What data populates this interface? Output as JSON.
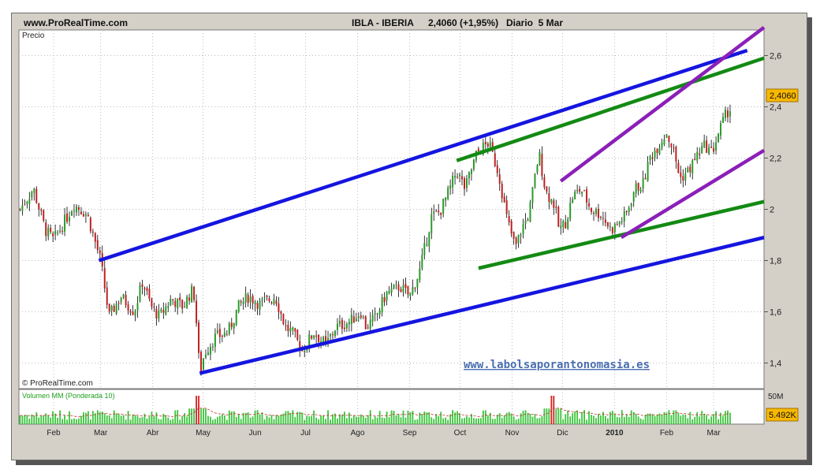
{
  "header": {
    "site": "www.ProRealTime.com",
    "ticker": "IBLA - IBERIA",
    "quote": "2,4060 (+1,95%)",
    "period": "Diario  5 Mar"
  },
  "price_panel": {
    "label": "Precio",
    "copyright": "© ProRealTime.com",
    "watermark": "www.labolsaporantonomasia.es",
    "last_price_badge": "2,4060"
  },
  "volume_panel": {
    "label": "Volumen MM (Ponderada 10)",
    "scale_label": "50M",
    "last_volume_badge": "5.492K"
  },
  "colors": {
    "blue_channel": "#1515e0",
    "green_trend": "#138a13",
    "purple_channel": "#8b1fb8",
    "volume_bar": "#3cc43c",
    "volume_spike": "#d82020",
    "volume_avg": "#c03030"
  },
  "chart_data": {
    "type": "candlestick",
    "title": "IBLA - IBERIA",
    "ylabel": "Precio",
    "ylim": [
      1.3,
      2.7
    ],
    "y_ticks": [
      "2,6",
      "2,4",
      "2,2",
      "2",
      "1,8",
      "1,6",
      "1,4"
    ],
    "y_tick_values": [
      2.6,
      2.4,
      2.2,
      2.0,
      1.8,
      1.6,
      1.4
    ],
    "x_ticks": [
      "Feb",
      "Mar",
      "Abr",
      "May",
      "Jun",
      "Jul",
      "Ago",
      "Sep",
      "Oct",
      "Nov",
      "Dic",
      "2010",
      "Feb",
      "Mar"
    ],
    "x_tick_days": [
      0,
      28,
      59,
      89,
      120,
      150,
      181,
      212,
      242,
      273,
      303,
      334,
      365,
      393
    ],
    "last_price": 2.406,
    "change_pct": 1.95,
    "price_path": [
      [
        -20,
        2.0
      ],
      [
        -12,
        2.08
      ],
      [
        -5,
        1.92
      ],
      [
        0,
        1.88
      ],
      [
        8,
        1.97
      ],
      [
        12,
        2.02
      ],
      [
        20,
        1.98
      ],
      [
        28,
        1.8
      ],
      [
        33,
        1.58
      ],
      [
        40,
        1.66
      ],
      [
        48,
        1.6
      ],
      [
        53,
        1.72
      ],
      [
        58,
        1.62
      ],
      [
        63,
        1.58
      ],
      [
        70,
        1.65
      ],
      [
        77,
        1.62
      ],
      [
        82,
        1.68
      ],
      [
        84,
        1.66
      ],
      [
        86,
        1.46
      ],
      [
        87,
        1.36
      ],
      [
        90,
        1.44
      ],
      [
        96,
        1.5
      ],
      [
        104,
        1.52
      ],
      [
        110,
        1.62
      ],
      [
        116,
        1.66
      ],
      [
        123,
        1.63
      ],
      [
        132,
        1.66
      ],
      [
        138,
        1.54
      ],
      [
        142,
        1.52
      ],
      [
        148,
        1.45
      ],
      [
        155,
        1.52
      ],
      [
        162,
        1.47
      ],
      [
        168,
        1.54
      ],
      [
        176,
        1.56
      ],
      [
        183,
        1.6
      ],
      [
        186,
        1.54
      ],
      [
        192,
        1.58
      ],
      [
        198,
        1.67
      ],
      [
        206,
        1.7
      ],
      [
        212,
        1.66
      ],
      [
        218,
        1.76
      ],
      [
        225,
        1.97
      ],
      [
        230,
        1.99
      ],
      [
        236,
        2.08
      ],
      [
        240,
        2.15
      ],
      [
        245,
        2.08
      ],
      [
        252,
        2.22
      ],
      [
        259,
        2.26
      ],
      [
        265,
        2.14
      ],
      [
        270,
        1.96
      ],
      [
        275,
        1.85
      ],
      [
        279,
        1.93
      ],
      [
        283,
        1.98
      ],
      [
        289,
        2.22
      ],
      [
        293,
        2.07
      ],
      [
        298,
        2.02
      ],
      [
        301,
        1.92
      ],
      [
        305,
        1.95
      ],
      [
        309,
        2.05
      ],
      [
        314,
        2.08
      ],
      [
        320,
        2.0
      ],
      [
        326,
        1.98
      ],
      [
        332,
        1.92
      ],
      [
        337,
        1.95
      ],
      [
        341,
        1.98
      ],
      [
        346,
        2.08
      ],
      [
        351,
        2.1
      ],
      [
        355,
        2.2
      ],
      [
        360,
        2.25
      ],
      [
        365,
        2.3
      ],
      [
        369,
        2.23
      ],
      [
        373,
        2.12
      ],
      [
        378,
        2.15
      ],
      [
        384,
        2.22
      ],
      [
        388,
        2.25
      ],
      [
        392,
        2.22
      ],
      [
        396,
        2.3
      ],
      [
        401,
        2.38
      ],
      [
        404,
        2.4
      ]
    ],
    "trendlines": [
      {
        "color": "blue",
        "points": [
          [
            27,
            1.8
          ],
          [
            413,
            2.62
          ]
        ]
      },
      {
        "color": "blue",
        "points": [
          [
            87,
            1.36
          ],
          [
            440,
            1.89
          ]
        ]
      },
      {
        "color": "green",
        "points": [
          [
            240,
            2.19
          ],
          [
            440,
            2.59
          ]
        ]
      },
      {
        "color": "green",
        "points": [
          [
            253,
            1.77
          ],
          [
            440,
            2.03
          ]
        ]
      },
      {
        "color": "purple",
        "points": [
          [
            302,
            2.11
          ],
          [
            440,
            2.71
          ]
        ]
      },
      {
        "color": "purple",
        "points": [
          [
            338,
            1.89
          ],
          [
            440,
            2.23
          ]
        ]
      }
    ],
    "volume_spikes_days": [
      86,
      297
    ]
  }
}
